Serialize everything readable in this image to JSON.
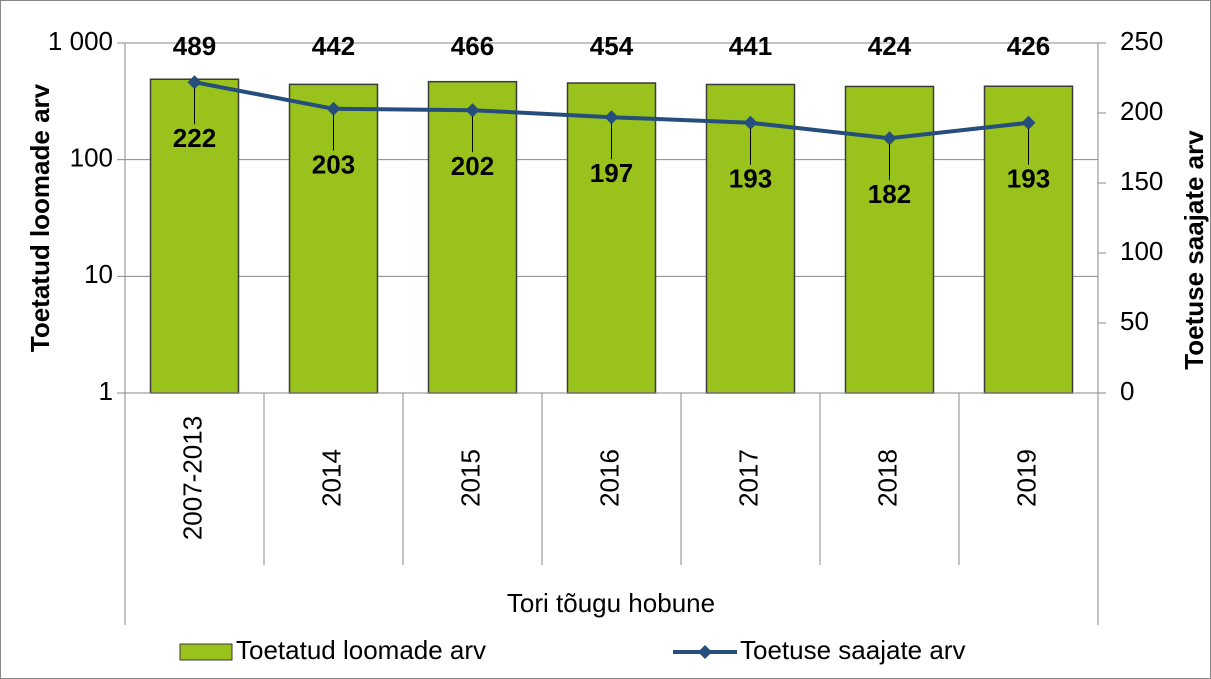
{
  "chart_data": {
    "type": "bar",
    "categories": [
      "2007-2013",
      "2014",
      "2015",
      "2016",
      "2017",
      "2018",
      "2019"
    ],
    "xgroup": "Tori tõugu hobune",
    "series": [
      {
        "name": "Toetatud loomade arv",
        "type": "bar",
        "color": "#99c21c",
        "values": [
          489,
          442,
          466,
          454,
          441,
          424,
          426
        ]
      },
      {
        "name": "Toetuse saajate arv",
        "type": "line",
        "axis": "y2",
        "color": "#254e7c",
        "values": [
          222,
          203,
          202,
          197,
          193,
          182,
          193
        ]
      }
    ],
    "ylabel": "Toetatud loomade arv",
    "y2label": "Toetuse saajate arv",
    "yscale": "log",
    "ylim": [
      1,
      1000
    ],
    "yticks": [
      1,
      10,
      100,
      {
        "value": 1000,
        "label": "1 000"
      }
    ],
    "y2lim": [
      0,
      250
    ],
    "y2ticks": [
      0,
      50,
      100,
      150,
      200,
      250
    ],
    "grid": true,
    "legend": "bottom"
  }
}
